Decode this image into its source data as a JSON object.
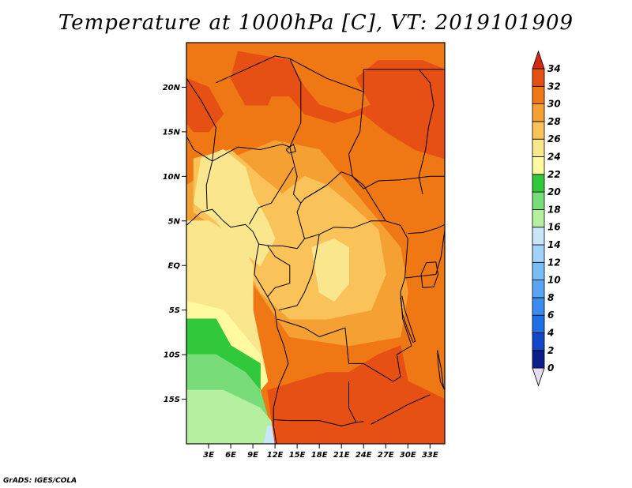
{
  "title": "Temperature at 1000hPa [C], VT: 2019101909",
  "footer": "GrADS: IGES/COLA",
  "map": {
    "lat_range": [
      -20,
      25
    ],
    "lon_range": [
      0,
      35
    ],
    "lat_ticks": [
      {
        "value": 20,
        "label": "20N"
      },
      {
        "value": 15,
        "label": "15N"
      },
      {
        "value": 10,
        "label": "10N"
      },
      {
        "value": 5,
        "label": "5N"
      },
      {
        "value": 0,
        "label": "EQ"
      },
      {
        "value": -5,
        "label": "5S"
      },
      {
        "value": -10,
        "label": "10S"
      },
      {
        "value": -15,
        "label": "15S"
      }
    ],
    "lon_ticks": [
      {
        "value": 3,
        "label": "3E"
      },
      {
        "value": 6,
        "label": "6E"
      },
      {
        "value": 9,
        "label": "9E"
      },
      {
        "value": 12,
        "label": "12E"
      },
      {
        "value": 15,
        "label": "15E"
      },
      {
        "value": 18,
        "label": "18E"
      },
      {
        "value": 21,
        "label": "21E"
      },
      {
        "value": 24,
        "label": "24E"
      },
      {
        "value": 27,
        "label": "27E"
      },
      {
        "value": 30,
        "label": "30E"
      },
      {
        "value": 33,
        "label": "33E"
      }
    ]
  },
  "colorbar": {
    "labels": [
      "0",
      "2",
      "4",
      "6",
      "8",
      "10",
      "12",
      "14",
      "16",
      "18",
      "20",
      "22",
      "24",
      "26",
      "28",
      "30",
      "32",
      "34"
    ],
    "colors": [
      "#e6dcf2",
      "#0a1e8c",
      "#1446c8",
      "#1e6ee6",
      "#3c8cf0",
      "#5aa5f5",
      "#78bef5",
      "#a0d2fa",
      "#c8e6fa",
      "#b4f0a0",
      "#78dc78",
      "#32c83c",
      "#fffaa0",
      "#fae68c",
      "#fac35a",
      "#f5a032",
      "#f07814",
      "#e65014",
      "#d22814"
    ]
  }
}
